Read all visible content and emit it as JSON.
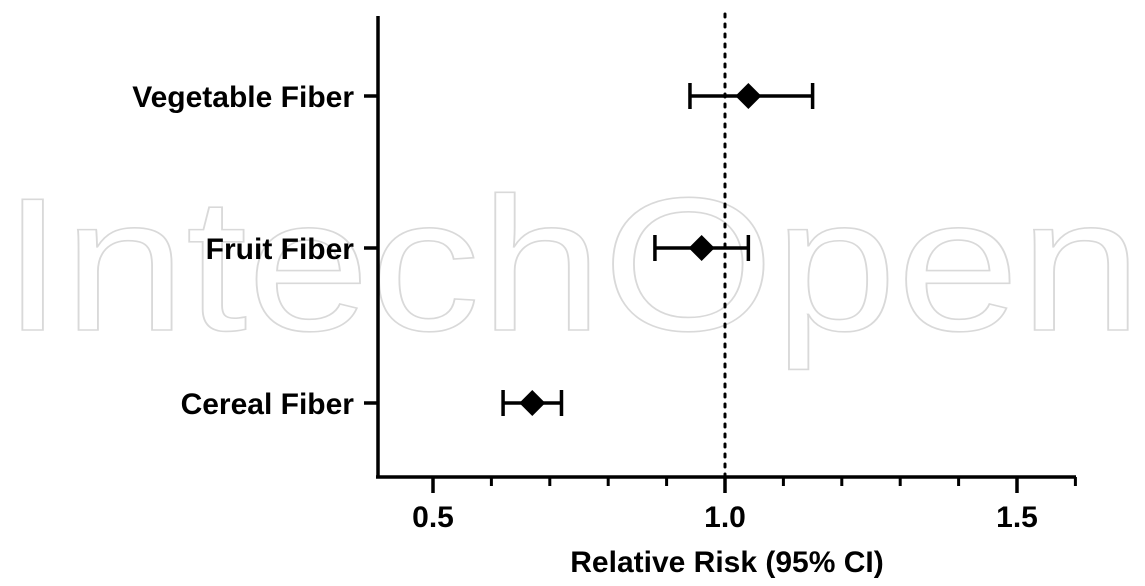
{
  "watermark": "IntechOpen",
  "chart_data": {
    "type": "forest",
    "title": "",
    "xlabel": "Relative Risk (95% CI)",
    "ylabel": "",
    "xlim": [
      0.41,
      1.6
    ],
    "xticks": [
      {
        "value": 0.5,
        "label": "0.5"
      },
      {
        "value": 1.0,
        "label": "1.0"
      },
      {
        "value": 1.5,
        "label": "1.5"
      }
    ],
    "minor_tick_step": 0.1,
    "reference_line": 1.0,
    "grid": false,
    "categories": [
      "Vegetable Fiber",
      "Fruit Fiber",
      "Cereal Fiber"
    ],
    "estimates": [
      1.04,
      0.96,
      0.67
    ],
    "ci_lower": [
      0.94,
      0.88,
      0.62
    ],
    "ci_upper": [
      1.15,
      1.04,
      0.72
    ]
  }
}
